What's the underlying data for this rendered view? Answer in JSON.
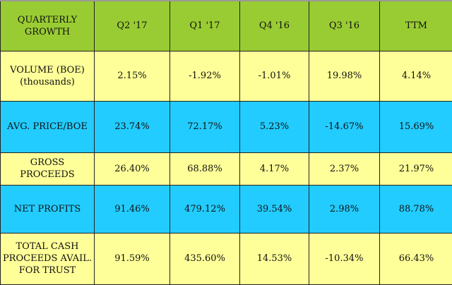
{
  "chart_data": {
    "type": "table",
    "title": "QUARTERLY GROWTH",
    "columns": [
      "QUARTERLY GROWTH",
      "Q2 '17",
      "Q1 '17",
      "Q4 '16",
      "Q3 '16",
      "TTM"
    ],
    "rows": [
      {
        "label": "VOLUME (BOE)\n(thousands)",
        "values": [
          "2.15%",
          "-1.92%",
          "-1.01%",
          "19.98%",
          "4.14%"
        ]
      },
      {
        "label": "AVG. PRICE/BOE",
        "values": [
          "23.74%",
          "72.17%",
          "5.23%",
          "-14.67%",
          "15.69%"
        ]
      },
      {
        "label": "GROSS\nPROCEEDS",
        "values": [
          "26.40%",
          "68.88%",
          "4.17%",
          "2.37%",
          "21.97%"
        ]
      },
      {
        "label": "NET PROFITS",
        "values": [
          "91.46%",
          "479.12%",
          "39.54%",
          "2.98%",
          "88.78%"
        ]
      },
      {
        "label": "TOTAL CASH\nPROCEEDS AVAIL.\nFOR TRUST",
        "values": [
          "91.59%",
          "435.60%",
          "14.53%",
          "-10.34%",
          "66.43%"
        ]
      }
    ]
  },
  "colors": {
    "header": "#99cc33",
    "yellow_row": "#ffff99",
    "blue_row": "#22ccff"
  }
}
